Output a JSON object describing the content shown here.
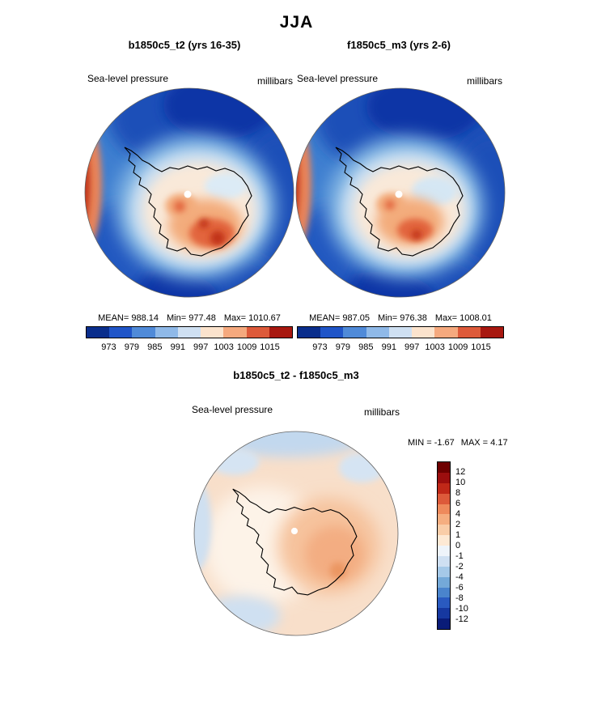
{
  "page_title": "JJA",
  "panels": [
    {
      "title": "b1850c5_t2 (yrs 16-35)",
      "field": "Sea-level pressure",
      "units": "millibars",
      "mean_label": "MEAN= 988.14",
      "min_label": "Min= 977.48",
      "max_label": "Max= 1010.67"
    },
    {
      "title": "f1850c5_m3 (yrs 2-6)",
      "field": "Sea-level pressure",
      "units": "millibars",
      "mean_label": "MEAN= 987.05",
      "min_label": "Min= 976.38",
      "max_label": "Max= 1008.01"
    }
  ],
  "diff_panel": {
    "title": "b1850c5_t2 - f1850c5_m3",
    "field": "Sea-level pressure",
    "units": "millibars",
    "min_label": "MIN = -1.67",
    "max_label": "MAX =  4.17"
  },
  "colorbar": {
    "ticks": [
      "973",
      "979",
      "985",
      "991",
      "997",
      "1003",
      "1009",
      "1015"
    ],
    "colors": [
      "#0a2e8c",
      "#2055c8",
      "#4f8ad8",
      "#8fb9e8",
      "#cfe0f2",
      "#fbe3cd",
      "#f5a97e",
      "#dd5a3a",
      "#a81810"
    ]
  },
  "diff_colorbar": {
    "ticks": [
      "12",
      "10",
      "8",
      "6",
      "4",
      "2",
      "1",
      "0",
      "-1",
      "-2",
      "-4",
      "-6",
      "-8",
      "-10",
      "-12"
    ],
    "colors": [
      "#6e0000",
      "#9c0e0e",
      "#c02818",
      "#dd5a3a",
      "#ee8a5c",
      "#f5ae80",
      "#f9cda8",
      "#fde9d4",
      "#eef4fa",
      "#cfe0f2",
      "#a5c9e8",
      "#74a9d8",
      "#4a84cc",
      "#2a5ac0",
      "#1638a0",
      "#0a1c78"
    ]
  },
  "chart_data": {
    "type": "heatmap",
    "title": "JJA",
    "variable": "Sea-level pressure",
    "units": "millibars",
    "projection": "south polar stereographic (Antarctica)",
    "panels": [
      {
        "name": "b1850c5_t2 (yrs 16-35)",
        "mean": 988.14,
        "min": 977.48,
        "max": 1010.67,
        "contour_levels": [
          973,
          979,
          985,
          991,
          997,
          1003,
          1009,
          1015
        ]
      },
      {
        "name": "f1850c5_m3 (yrs 2-6)",
        "mean": 987.05,
        "min": 976.38,
        "max": 1008.01,
        "contour_levels": [
          973,
          979,
          985,
          991,
          997,
          1003,
          1009,
          1015
        ]
      },
      {
        "name": "b1850c5_t2 - f1850c5_m3",
        "min": -1.67,
        "max": 4.17,
        "contour_levels": [
          -12,
          -10,
          -8,
          -6,
          -4,
          -2,
          -1,
          0,
          1,
          2,
          4,
          6,
          8,
          10,
          12
        ]
      }
    ]
  }
}
